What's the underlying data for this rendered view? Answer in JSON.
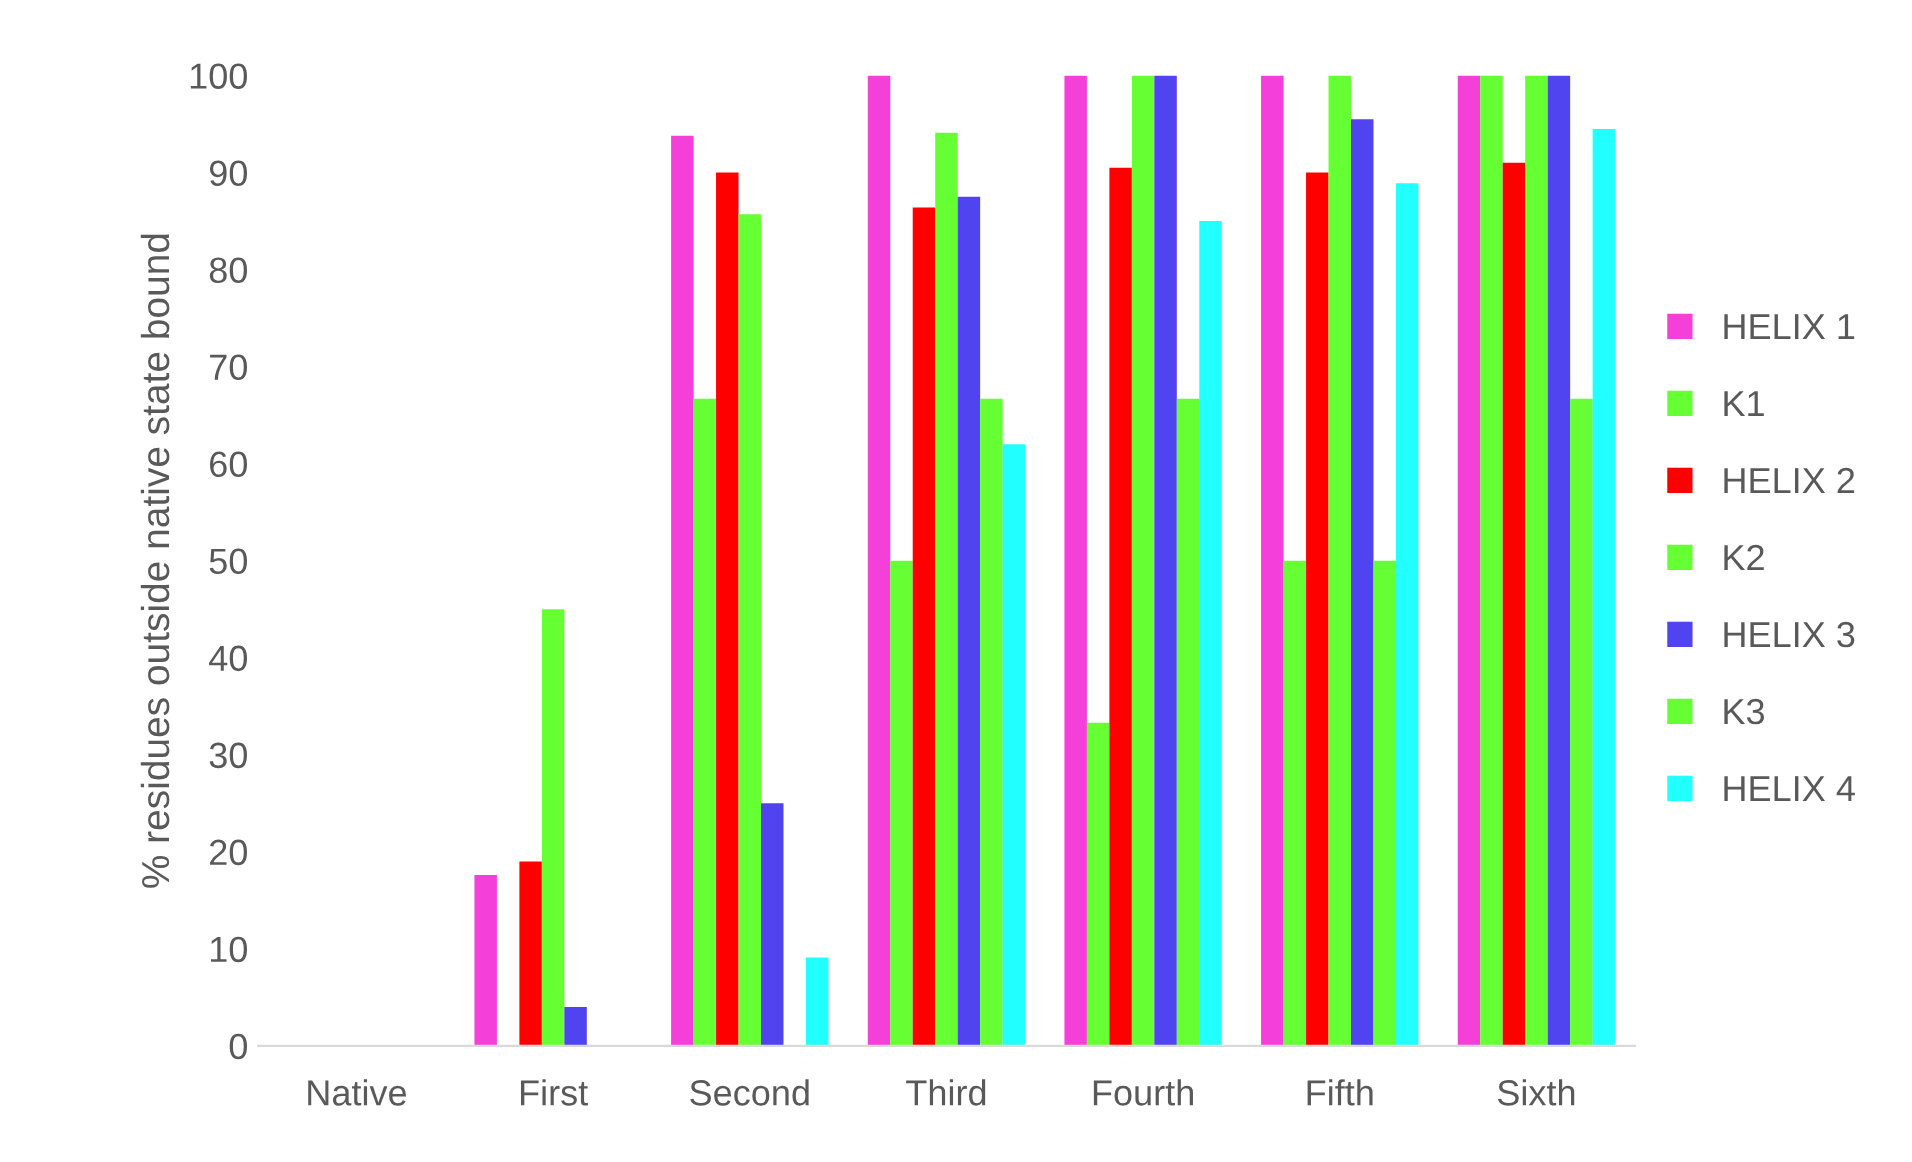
{
  "chart_data": {
    "type": "bar",
    "ylabel": "% residues outside native state bound",
    "categories": [
      "Native",
      "First",
      "Second",
      "Third",
      "Fourth",
      "Fifth",
      "Sixth"
    ],
    "series": [
      {
        "name": "HELIX 1",
        "color": "#f43fd8",
        "values": [
          0,
          17.6,
          93.8,
          100,
          100,
          100,
          100
        ]
      },
      {
        "name": "K1",
        "color": "#66ff33",
        "values": [
          0,
          0,
          66.7,
          50,
          33.3,
          50,
          100
        ]
      },
      {
        "name": "HELIX 2",
        "color": "#ff0000",
        "values": [
          0,
          19,
          90,
          86.4,
          90.5,
          90,
          91
        ]
      },
      {
        "name": "K2",
        "color": "#66ff33",
        "values": [
          0,
          45,
          85.7,
          94.1,
          100,
          100,
          100
        ]
      },
      {
        "name": "HELIX 3",
        "color": "#4f44f0",
        "values": [
          0,
          4,
          25,
          87.5,
          100,
          95.5,
          100
        ]
      },
      {
        "name": "K3",
        "color": "#66ff33",
        "values": [
          0,
          0,
          0,
          66.7,
          66.7,
          50,
          66.7
        ]
      },
      {
        "name": "HELIX 4",
        "color": "#22ffff",
        "values": [
          0,
          0,
          9.1,
          62,
          85,
          88.9,
          94.5
        ]
      }
    ],
    "ylim": [
      0,
      100
    ],
    "yticks": [
      0,
      10,
      20,
      30,
      40,
      50,
      60,
      70,
      80,
      90,
      100
    ],
    "grid": false,
    "legend": "right"
  }
}
